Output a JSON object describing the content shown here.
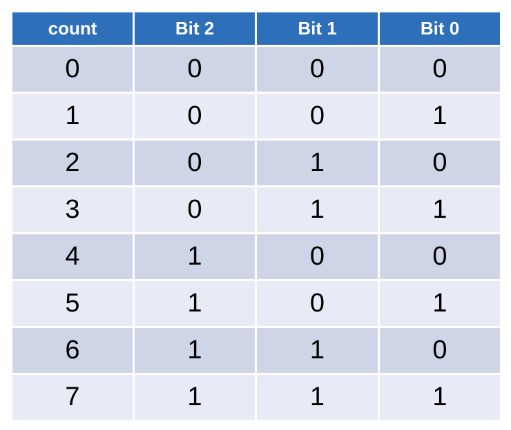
{
  "table": {
    "headers": [
      "count",
      "Bit 2",
      "Bit 1",
      "Bit 0"
    ],
    "rows": [
      [
        "0",
        "0",
        "0",
        "0"
      ],
      [
        "1",
        "0",
        "0",
        "1"
      ],
      [
        "2",
        "0",
        "1",
        "0"
      ],
      [
        "3",
        "0",
        "1",
        "1"
      ],
      [
        "4",
        "1",
        "0",
        "0"
      ],
      [
        "5",
        "1",
        "0",
        "1"
      ],
      [
        "6",
        "1",
        "1",
        "0"
      ],
      [
        "7",
        "1",
        "1",
        "1"
      ]
    ]
  },
  "colors": {
    "header_bg": "#2e6fba",
    "header_text": "#ffffff",
    "row_dark": "#cfd5e7",
    "row_light": "#e8ebf5"
  }
}
